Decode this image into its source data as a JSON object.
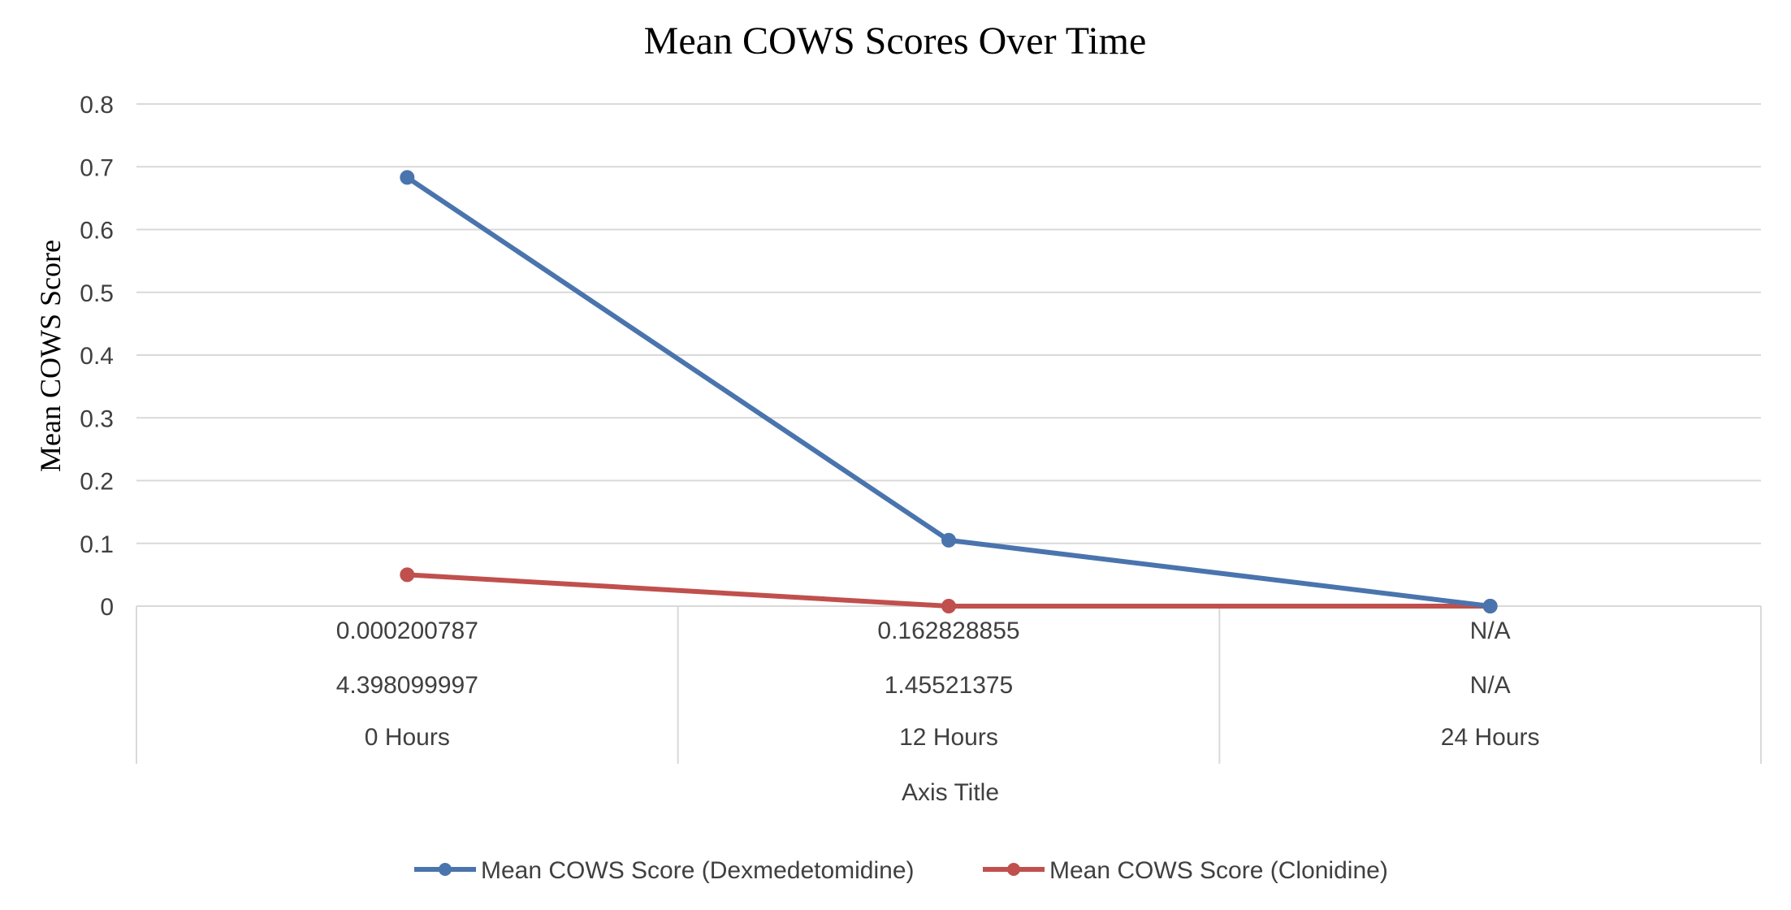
{
  "chart_data": {
    "type": "line",
    "title": "Mean COWS Scores Over Time",
    "xlabel": "Axis Title",
    "ylabel": "Mean COWS Score",
    "categories": [
      "0 Hours",
      "12 Hours",
      "24 Hours"
    ],
    "table_rows": [
      [
        "0.000200787",
        "0.162828855",
        "N/A"
      ],
      [
        "4.398099997",
        "1.45521375",
        "N/A"
      ]
    ],
    "yticks": [
      "0",
      "0.1",
      "0.2",
      "0.3",
      "0.4",
      "0.5",
      "0.6",
      "0.7",
      "0.8"
    ],
    "ylim": [
      0,
      0.8
    ],
    "grid": true,
    "legend_position": "bottom",
    "series": [
      {
        "name": "Mean COWS Score (Dexmedetomidine)",
        "values": [
          0.683,
          0.105,
          0
        ],
        "color": "#4a74ad"
      },
      {
        "name": "Mean COWS Score (Clonidine)",
        "values": [
          0.05,
          0,
          0
        ],
        "color": "#c0504d"
      }
    ]
  }
}
